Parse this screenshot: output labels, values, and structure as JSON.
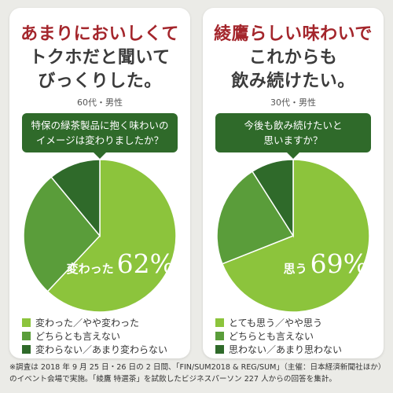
{
  "colors": {
    "headline_red": "#a4262c",
    "light_green": "#8cc43c",
    "mid_green": "#5a9d3a",
    "dark_green": "#2f6a2a"
  },
  "left": {
    "headline": [
      "あまりにおいしくて",
      "トクホだと聞いて",
      "びっくりした。"
    ],
    "respondent": "60代・男性",
    "question": [
      "特保の緑茶製品に抱く味わいの",
      "イメージは変わりましたか？"
    ],
    "highlight_label": "変わった",
    "highlight_value": "62%",
    "legend": [
      "変わった／やや変わった",
      "どちらとも言えない",
      "変わらない／あまり変わらない"
    ]
  },
  "right": {
    "headline": [
      "綾鷹らしい味わいで",
      "これからも",
      "飲み続けたい。"
    ],
    "respondent": "30代・男性",
    "question": [
      "今後も飲み続けたいと",
      "思いますか？"
    ],
    "highlight_label": "思う",
    "highlight_value": "69%",
    "legend": [
      "とても思う／やや思う",
      "どちらとも言えない",
      "思わない／あまり思わない"
    ]
  },
  "footnote": [
    "※調査は 2018 年 9 月 25 日・26 日の 2 日間、「FIN/SUM2018 & REG/SUM」（主催：日本経済新聞社ほか）",
    "のイベント会場で実施。「綾鷹 特選茶」を試飲したビジネスパーソン 227 人からの回答を集計。"
  ],
  "chart_data": [
    {
      "type": "pie",
      "title": "特保の緑茶製品に抱く味わいのイメージは変わりましたか？",
      "categories": [
        "変わった／やや変わった",
        "どちらとも言えない",
        "変わらない／あまり変わらない"
      ],
      "values": [
        62,
        27,
        11
      ],
      "colors": [
        "#8cc43c",
        "#5a9d3a",
        "#2f6a2a"
      ]
    },
    {
      "type": "pie",
      "title": "今後も飲み続けたいと思いますか？",
      "categories": [
        "とても思う／やや思う",
        "どちらとも言えない",
        "思わない／あまり思わない"
      ],
      "values": [
        69,
        22,
        9
      ],
      "colors": [
        "#8cc43c",
        "#5a9d3a",
        "#2f6a2a"
      ]
    }
  ]
}
